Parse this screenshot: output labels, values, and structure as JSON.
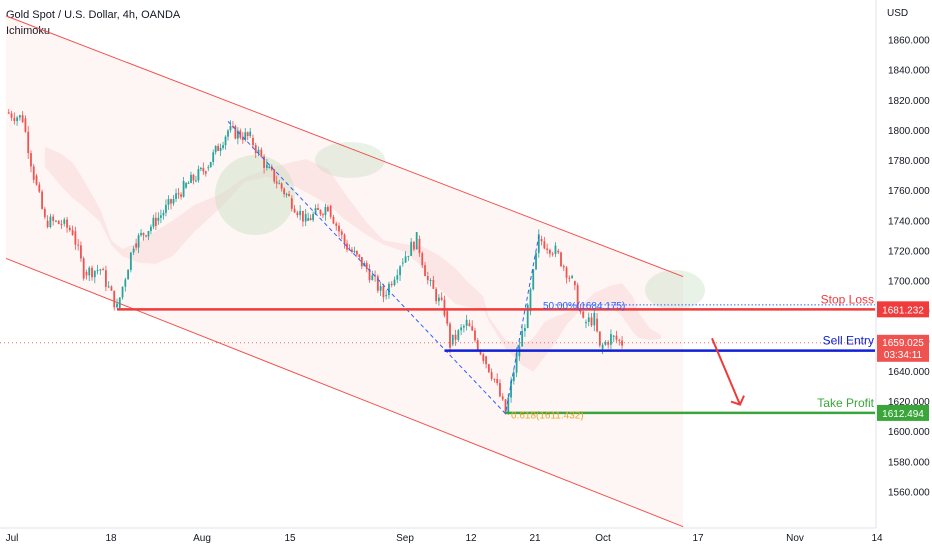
{
  "header": {
    "title": "Gold Spot / U.S. Dollar, 4h, OANDA",
    "indicator": "Ichimoku",
    "currency": "USD"
  },
  "chart_data": {
    "type": "candlestick",
    "ylim": [
      1545,
      1878
    ],
    "y_ticks": [
      1860,
      1840,
      1820,
      1800,
      1780,
      1760,
      1740,
      1720,
      1700,
      1680,
      1660,
      1640,
      1620,
      1600,
      1580,
      1560
    ],
    "x_tick_labels": [
      "Jul",
      "18",
      "Aug",
      "15",
      "Sep",
      "12",
      "21",
      "Oct",
      "17",
      "Nov",
      "14"
    ],
    "price_path": [
      {
        "x": "Jul 1",
        "y": 1812
      },
      {
        "x": "Jul 4",
        "y": 1808
      },
      {
        "x": "Jul 6",
        "y": 1770
      },
      {
        "x": "Jul 8",
        "y": 1740
      },
      {
        "x": "Jul 11",
        "y": 1738
      },
      {
        "x": "Jul 13",
        "y": 1733
      },
      {
        "x": "Jul 15",
        "y": 1706
      },
      {
        "x": "Jul 18",
        "y": 1708
      },
      {
        "x": "Jul 21",
        "y": 1682
      },
      {
        "x": "Jul 24",
        "y": 1725
      },
      {
        "x": "Jul 28",
        "y": 1740
      },
      {
        "x": "Aug 2",
        "y": 1762
      },
      {
        "x": "Aug 6",
        "y": 1775
      },
      {
        "x": "Aug 10",
        "y": 1800
      },
      {
        "x": "Aug 14",
        "y": 1795
      },
      {
        "x": "Aug 17",
        "y": 1775
      },
      {
        "x": "Aug 21",
        "y": 1755
      },
      {
        "x": "Aug 24",
        "y": 1740
      },
      {
        "x": "Aug 28",
        "y": 1750
      },
      {
        "x": "Aug 31",
        "y": 1725
      },
      {
        "x": "Sep 4",
        "y": 1708
      },
      {
        "x": "Sep 7",
        "y": 1690
      },
      {
        "x": "Sep 10",
        "y": 1712
      },
      {
        "x": "Sep 13",
        "y": 1728
      },
      {
        "x": "Sep 15",
        "y": 1700
      },
      {
        "x": "Sep 18",
        "y": 1680
      },
      {
        "x": "Sep 19",
        "y": 1658
      },
      {
        "x": "Sep 22",
        "y": 1672
      },
      {
        "x": "Sep 25",
        "y": 1650
      },
      {
        "x": "Sep 27",
        "y": 1635
      },
      {
        "x": "Sep 29",
        "y": 1612
      },
      {
        "x": "Oct 1",
        "y": 1650
      },
      {
        "x": "Oct 3",
        "y": 1680
      },
      {
        "x": "Oct 5",
        "y": 1728
      },
      {
        "x": "Oct 8",
        "y": 1720
      },
      {
        "x": "Oct 11",
        "y": 1700
      },
      {
        "x": "Oct 13",
        "y": 1672
      },
      {
        "x": "Oct 15",
        "y": 1675
      },
      {
        "x": "Oct 16",
        "y": 1655
      },
      {
        "x": "Oct 18",
        "y": 1663
      },
      {
        "x": "Oct 20",
        "y": 1659
      }
    ],
    "channel": {
      "upper": {
        "from": {
          "x": "Jul 1",
          "y": 1876
        },
        "to": {
          "x": "Oct 31",
          "y": 1703
        }
      },
      "lower": {
        "from": {
          "x": "Jul 1",
          "y": 1715
        },
        "to": {
          "x": "Oct 31",
          "y": 1537
        }
      }
    },
    "levels": {
      "stop_loss": {
        "label": "Stop Loss",
        "value": 1681.232,
        "price_label": "1681.232",
        "color": "#ef3b3b"
      },
      "sell_entry": {
        "label": "Sell Entry",
        "value": 1653.795,
        "price_label": "1653.795",
        "color": "#1020d8"
      },
      "take_profit": {
        "label": "Take Profit",
        "value": 1612.494,
        "price_label": "1612.494",
        "color": "#3aa53a"
      },
      "current": {
        "price_label": "1659.025",
        "countdown": "03:34:11",
        "color": "#ef5350"
      }
    },
    "fibonacci": [
      {
        "label": "50.00%(1684.175)",
        "value": 1684.175,
        "color": "#2962ff"
      },
      {
        "label": "0.618(1611.432)",
        "value": 1611.432,
        "color": "#e8a72c"
      }
    ]
  }
}
